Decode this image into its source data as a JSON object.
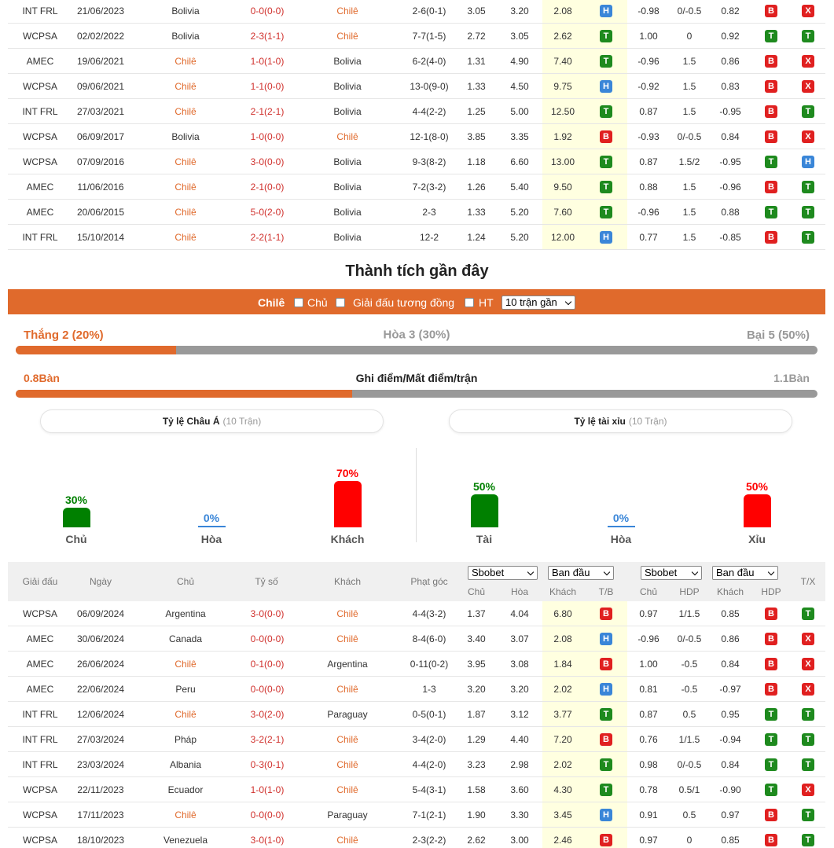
{
  "h2h": {
    "rows": [
      [
        "INT FRL",
        "21/06/2023",
        "Bolivia",
        "0-0(0-0)",
        "Chilê",
        "2-6(0-1)",
        "3.05",
        "3.20",
        "2.08",
        "H",
        "-0.98",
        "0/-0.5",
        "0.82",
        "B",
        "X"
      ],
      [
        "WCPSA",
        "02/02/2022",
        "Bolivia",
        "2-3(1-1)",
        "Chilê",
        "7-7(1-5)",
        "2.72",
        "3.05",
        "2.62",
        "T",
        "1.00",
        "0",
        "0.92",
        "T",
        "T"
      ],
      [
        "AMEC",
        "19/06/2021",
        "Chilê",
        "1-0(1-0)",
        "Bolivia",
        "6-2(4-0)",
        "1.31",
        "4.90",
        "7.40",
        "T",
        "-0.96",
        "1.5",
        "0.86",
        "B",
        "X"
      ],
      [
        "WCPSA",
        "09/06/2021",
        "Chilê",
        "1-1(0-0)",
        "Bolivia",
        "13-0(9-0)",
        "1.33",
        "4.50",
        "9.75",
        "H",
        "-0.92",
        "1.5",
        "0.83",
        "B",
        "X"
      ],
      [
        "INT FRL",
        "27/03/2021",
        "Chilê",
        "2-1(2-1)",
        "Bolivia",
        "4-4(2-2)",
        "1.25",
        "5.00",
        "12.50",
        "T",
        "0.87",
        "1.5",
        "-0.95",
        "B",
        "T"
      ],
      [
        "WCPSA",
        "06/09/2017",
        "Bolivia",
        "1-0(0-0)",
        "Chilê",
        "12-1(8-0)",
        "3.85",
        "3.35",
        "1.92",
        "B",
        "-0.93",
        "0/-0.5",
        "0.84",
        "B",
        "X"
      ],
      [
        "WCPSA",
        "07/09/2016",
        "Chilê",
        "3-0(0-0)",
        "Bolivia",
        "9-3(8-2)",
        "1.18",
        "6.60",
        "13.00",
        "T",
        "0.87",
        "1.5/2",
        "-0.95",
        "T",
        "H"
      ],
      [
        "AMEC",
        "11/06/2016",
        "Chilê",
        "2-1(0-0)",
        "Bolivia",
        "7-2(3-2)",
        "1.26",
        "5.40",
        "9.50",
        "T",
        "0.88",
        "1.5",
        "-0.96",
        "B",
        "T"
      ],
      [
        "AMEC",
        "20/06/2015",
        "Chilê",
        "5-0(2-0)",
        "Bolivia",
        "2-3",
        "1.33",
        "5.20",
        "7.60",
        "T",
        "-0.96",
        "1.5",
        "0.88",
        "T",
        "T"
      ],
      [
        "INT FRL",
        "15/10/2014",
        "Chilê",
        "2-2(1-1)",
        "Bolivia",
        "12-2",
        "1.24",
        "5.20",
        "12.00",
        "H",
        "0.77",
        "1.5",
        "-0.85",
        "B",
        "T"
      ]
    ]
  },
  "section_title": "Thành tích gần đây",
  "filter": {
    "team": "Chilê",
    "home": "Chủ",
    "same_league": "Giải đấu tương đồng",
    "ht": "HT",
    "select": "10 trận gần"
  },
  "stats": {
    "win": "Thắng 2 (20%)",
    "draw": "Hòa 3 (30%)",
    "loss": "Bại 5 (50%)",
    "scored": "0.8Bàn",
    "goals_label": "Ghi điểm/Mất điểm/trận",
    "conceded": "1.1Bàn"
  },
  "panels": [
    {
      "title": "Tỷ lệ Châu Á",
      "count": "(10 Trận)",
      "categories": [
        "Chủ",
        "Hòa",
        "Khách"
      ],
      "values": [
        30,
        0,
        70
      ],
      "value_labels": [
        "30%",
        "0%",
        "70%"
      ],
      "colors": [
        "#008000",
        "#3a86d8",
        "#ff0000"
      ]
    },
    {
      "title": "Tỷ lệ tài xỉu",
      "count": "(10 Trận)",
      "categories": [
        "Tài",
        "Hòa",
        "Xỉu"
      ],
      "values": [
        50,
        0,
        50
      ],
      "value_labels": [
        "50%",
        "0%",
        "50%"
      ],
      "colors": [
        "#008000",
        "#3a86d8",
        "#ff0000"
      ]
    }
  ],
  "recent": {
    "header": [
      "Giải đấu",
      "Ngày",
      "Chủ",
      "Tỷ số",
      "Khách",
      "Phạt góc",
      "T/X"
    ],
    "selects": [
      "Sbobet",
      "Ban đầu",
      "Sbobet",
      "Ban đầu"
    ],
    "subheader": [
      "Chủ",
      "Hòa",
      "Khách",
      "T/B",
      "Chủ",
      "HDP",
      "Khách",
      "HDP"
    ],
    "rows": [
      [
        "WCPSA",
        "06/09/2024",
        "Argentina",
        "3-0(0-0)",
        "Chilê",
        "4-4(3-2)",
        "1.37",
        "4.04",
        "6.80",
        "B",
        "0.97",
        "1/1.5",
        "0.85",
        "B",
        "T"
      ],
      [
        "AMEC",
        "30/06/2024",
        "Canada",
        "0-0(0-0)",
        "Chilê",
        "8-4(6-0)",
        "3.40",
        "3.07",
        "2.08",
        "H",
        "-0.96",
        "0/-0.5",
        "0.86",
        "B",
        "X"
      ],
      [
        "AMEC",
        "26/06/2024",
        "Chilê",
        "0-1(0-0)",
        "Argentina",
        "0-11(0-2)",
        "3.95",
        "3.08",
        "1.84",
        "B",
        "1.00",
        "-0.5",
        "0.84",
        "B",
        "X"
      ],
      [
        "AMEC",
        "22/06/2024",
        "Peru",
        "0-0(0-0)",
        "Chilê",
        "1-3",
        "3.20",
        "3.20",
        "2.02",
        "H",
        "0.81",
        "-0.5",
        "-0.97",
        "B",
        "X"
      ],
      [
        "INT FRL",
        "12/06/2024",
        "Chilê",
        "3-0(2-0)",
        "Paraguay",
        "0-5(0-1)",
        "1.87",
        "3.12",
        "3.77",
        "T",
        "0.87",
        "0.5",
        "0.95",
        "T",
        "T"
      ],
      [
        "INT FRL",
        "27/03/2024",
        "Pháp",
        "3-2(2-1)",
        "Chilê",
        "3-4(2-0)",
        "1.29",
        "4.40",
        "7.20",
        "B",
        "0.76",
        "1/1.5",
        "-0.94",
        "T",
        "T"
      ],
      [
        "INT FRL",
        "23/03/2024",
        "Albania",
        "0-3(0-1)",
        "Chilê",
        "4-4(2-0)",
        "3.23",
        "2.98",
        "2.02",
        "T",
        "0.98",
        "0/-0.5",
        "0.84",
        "T",
        "T"
      ],
      [
        "WCPSA",
        "22/11/2023",
        "Ecuador",
        "1-0(1-0)",
        "Chilê",
        "5-4(3-1)",
        "1.58",
        "3.60",
        "4.30",
        "T",
        "0.78",
        "0.5/1",
        "-0.90",
        "T",
        "X"
      ],
      [
        "WCPSA",
        "17/11/2023",
        "Chilê",
        "0-0(0-0)",
        "Paraguay",
        "7-1(2-1)",
        "1.90",
        "3.30",
        "3.45",
        "H",
        "0.91",
        "0.5",
        "0.97",
        "B",
        "T"
      ],
      [
        "WCPSA",
        "18/10/2023",
        "Venezuela",
        "3-0(1-0)",
        "Chilê",
        "2-3(2-2)",
        "2.62",
        "3.00",
        "2.46",
        "B",
        "0.97",
        "0",
        "0.85",
        "B",
        "T"
      ]
    ]
  }
}
